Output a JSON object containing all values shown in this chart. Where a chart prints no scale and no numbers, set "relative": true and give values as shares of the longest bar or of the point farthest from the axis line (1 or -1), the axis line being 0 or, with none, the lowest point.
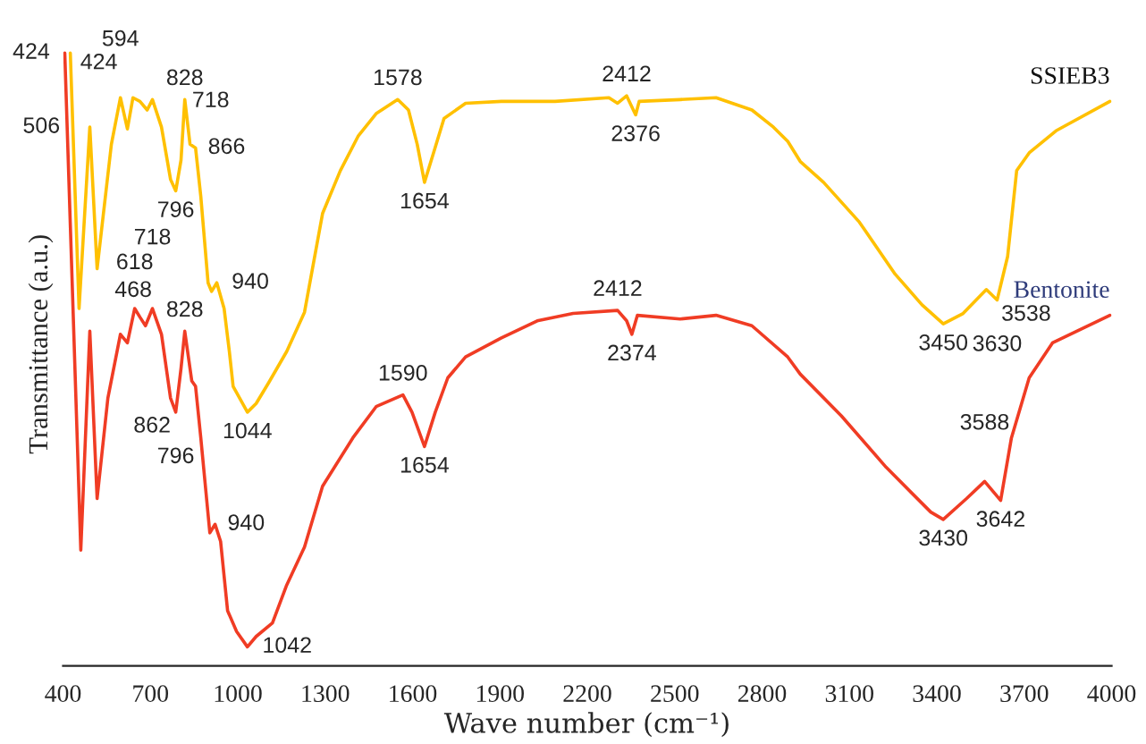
{
  "chart_data": {
    "type": "line",
    "relative": true,
    "xlabel": "Wave number (cm⁻¹)",
    "ylabel": "Transmittance (a.u.)",
    "xlim": [
      400,
      4000
    ],
    "xticks": [
      400,
      700,
      1000,
      1300,
      1600,
      1900,
      2200,
      2500,
      2800,
      3100,
      3400,
      3700,
      4000
    ],
    "grid": false,
    "legend": false,
    "series": [
      {
        "name": "SSIEB3",
        "color": "#ffc000",
        "x": [
          425,
          455,
          492,
          517,
          566,
          597,
          621,
          640,
          664,
          689,
          707,
          738,
          769,
          787,
          805,
          818,
          836,
          855,
          873,
          898,
          910,
          928,
          953,
          971,
          984,
          1033,
          1063,
          1106,
          1168,
          1229,
          1291,
          1352,
          1414,
          1475,
          1549,
          1586,
          1616,
          1641,
          1672,
          1708,
          1782,
          1905,
          2089,
          2274,
          2304,
          2335,
          2366,
          2378,
          2519,
          2642,
          2765,
          2839,
          2888,
          2931,
          3011,
          3134,
          3257,
          3349,
          3422,
          3490,
          3570,
          3607,
          3643,
          3674,
          3717,
          3809,
          3994
        ],
        "values": [
          1.0,
          0.583,
          0.879,
          0.648,
          0.851,
          0.927,
          0.876,
          0.927,
          0.921,
          0.907,
          0.924,
          0.879,
          0.794,
          0.775,
          0.825,
          0.924,
          0.851,
          0.845,
          0.766,
          0.625,
          0.611,
          0.625,
          0.583,
          0.513,
          0.456,
          0.414,
          0.428,
          0.462,
          0.513,
          0.577,
          0.738,
          0.808,
          0.865,
          0.901,
          0.924,
          0.907,
          0.851,
          0.789,
          0.837,
          0.893,
          0.918,
          0.921,
          0.921,
          0.927,
          0.918,
          0.93,
          0.899,
          0.921,
          0.924,
          0.927,
          0.907,
          0.879,
          0.856,
          0.823,
          0.789,
          0.724,
          0.639,
          0.589,
          0.558,
          0.575,
          0.614,
          0.597,
          0.668,
          0.808,
          0.837,
          0.873,
          0.921
        ]
      },
      {
        "name": "Bentonite",
        "color": "#f03c24",
        "x": [
          406,
          461,
          492,
          517,
          554,
          597,
          621,
          646,
          664,
          683,
          707,
          738,
          769,
          787,
          805,
          818,
          842,
          855,
          873,
          904,
          922,
          941,
          965,
          996,
          1033,
          1063,
          1119,
          1168,
          1229,
          1291,
          1395,
          1475,
          1567,
          1598,
          1641,
          1678,
          1721,
          1782,
          1905,
          2028,
          2151,
          2304,
          2335,
          2353,
          2372,
          2519,
          2642,
          2765,
          2888,
          2931,
          3072,
          3226,
          3379,
          3422,
          3502,
          3564,
          3619,
          3656,
          3717,
          3797,
          3994
        ],
        "values": [
          1.0,
          0.189,
          0.546,
          0.273,
          0.437,
          0.541,
          0.527,
          0.583,
          0.569,
          0.555,
          0.583,
          0.541,
          0.437,
          0.414,
          0.485,
          0.546,
          0.465,
          0.456,
          0.372,
          0.217,
          0.231,
          0.203,
          0.09,
          0.056,
          0.031,
          0.048,
          0.07,
          0.132,
          0.194,
          0.293,
          0.372,
          0.423,
          0.442,
          0.414,
          0.358,
          0.414,
          0.47,
          0.504,
          0.535,
          0.563,
          0.575,
          0.58,
          0.563,
          0.541,
          0.572,
          0.566,
          0.572,
          0.555,
          0.504,
          0.476,
          0.408,
          0.324,
          0.251,
          0.239,
          0.273,
          0.301,
          0.27,
          0.372,
          0.47,
          0.527,
          0.572
        ]
      }
    ],
    "annotations": [
      {
        "text": "424",
        "x": 425,
        "y": 1.0
      },
      {
        "text": "506",
        "x": 492,
        "y": 0.879
      },
      {
        "text": "594",
        "x": 597,
        "y": 0.927
      },
      {
        "text": "718",
        "x": 664,
        "y": 0.921
      },
      {
        "text": "828",
        "x": 818,
        "y": 0.924
      },
      {
        "text": "866",
        "x": 855,
        "y": 0.845
      },
      {
        "text": "796",
        "x": 787,
        "y": 0.775
      },
      {
        "text": "940",
        "x": 928,
        "y": 0.625
      },
      {
        "text": "1044",
        "x": 1033,
        "y": 0.414
      },
      {
        "text": "1578",
        "x": 1549,
        "y": 0.924
      },
      {
        "text": "1654",
        "x": 1641,
        "y": 0.789
      },
      {
        "text": "2412",
        "x": 2335,
        "y": 0.93
      },
      {
        "text": "2376",
        "x": 2366,
        "y": 0.899
      },
      {
        "text": "3450",
        "x": 3422,
        "y": 0.558
      },
      {
        "text": "3538",
        "x": 3570,
        "y": 0.614
      },
      {
        "text": "3630",
        "x": 3607,
        "y": 0.597
      },
      {
        "text": "424",
        "x": 406,
        "y": 1.0
      },
      {
        "text": "468",
        "x": 492,
        "y": 0.546
      },
      {
        "text": "618",
        "x": 646,
        "y": 0.583
      },
      {
        "text": "718",
        "x": 707,
        "y": 0.583
      },
      {
        "text": "828",
        "x": 818,
        "y": 0.546
      },
      {
        "text": "862",
        "x": 855,
        "y": 0.456
      },
      {
        "text": "796",
        "x": 787,
        "y": 0.414
      },
      {
        "text": "940",
        "x": 922,
        "y": 0.231
      },
      {
        "text": "1042",
        "x": 1033,
        "y": 0.031
      },
      {
        "text": "1590",
        "x": 1567,
        "y": 0.442
      },
      {
        "text": "1654",
        "x": 1641,
        "y": 0.358
      },
      {
        "text": "2412",
        "x": 2304,
        "y": 0.58
      },
      {
        "text": "2374",
        "x": 2353,
        "y": 0.541
      },
      {
        "text": "3430",
        "x": 3422,
        "y": 0.239
      },
      {
        "text": "3588",
        "x": 3564,
        "y": 0.301
      },
      {
        "text": "3642",
        "x": 3619,
        "y": 0.27
      }
    ]
  }
}
